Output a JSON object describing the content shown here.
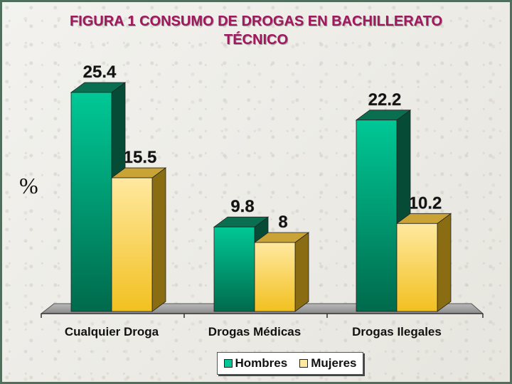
{
  "title_line1": "FIGURA 1 CONSUMO DE DROGAS EN BACHILLERATO",
  "title_line2": "TÉCNICO",
  "colors": {
    "hombres": "#00c896",
    "mujeres": "#ffe9a0",
    "title": "#a3175e"
  },
  "chart_data": {
    "type": "bar",
    "title": "FIGURA 1 CONSUMO DE DROGAS EN BACHILLERATO TÉCNICO",
    "ylabel": "%",
    "xlabel": "",
    "categories": [
      "Cualquier Droga",
      "Drogas Médicas",
      "Drogas Ilegales"
    ],
    "series": [
      {
        "name": "Hombres",
        "values": [
          25.4,
          9.8,
          22.2
        ]
      },
      {
        "name": "Mujeres",
        "values": [
          15.5,
          8,
          10.2
        ]
      }
    ],
    "value_labels": [
      [
        "25.4",
        "15.5"
      ],
      [
        "9.8",
        "8"
      ],
      [
        "22.2",
        "10.2"
      ]
    ],
    "ylim": [
      0,
      25.4
    ],
    "grid": false,
    "legend_position": "bottom",
    "style": "3d"
  }
}
